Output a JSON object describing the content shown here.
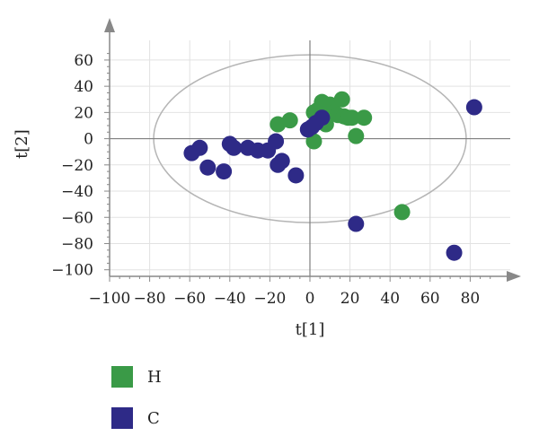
{
  "chart_data": {
    "type": "scatter",
    "title": "",
    "xlabel": "t[1]",
    "ylabel": "t[2]",
    "xlim": [
      -100,
      100
    ],
    "ylim": [
      -105,
      75
    ],
    "x_ticks": [
      -100,
      -80,
      -60,
      -40,
      -20,
      0,
      20,
      40,
      60,
      80
    ],
    "y_ticks": [
      -100,
      -80,
      -60,
      -40,
      -20,
      0,
      20,
      40,
      60
    ],
    "grid": true,
    "ellipse": {
      "center": [
        0,
        0
      ],
      "rx": 78,
      "ry": 64
    },
    "legend_position": "bottom-left",
    "series": [
      {
        "name": "H",
        "color": "#3a9a47",
        "points": [
          [
            -16,
            11
          ],
          [
            -10,
            14
          ],
          [
            2,
            -2
          ],
          [
            2,
            20
          ],
          [
            4,
            22
          ],
          [
            6,
            28
          ],
          [
            8,
            11
          ],
          [
            10,
            26
          ],
          [
            12,
            20
          ],
          [
            14,
            18
          ],
          [
            16,
            30
          ],
          [
            17,
            17
          ],
          [
            19,
            16
          ],
          [
            21,
            16
          ],
          [
            23,
            2
          ],
          [
            27,
            16
          ],
          [
            46,
            -56
          ]
        ]
      },
      {
        "name": "C",
        "color": "#2e2a87",
        "points": [
          [
            -59,
            -11
          ],
          [
            -55,
            -7
          ],
          [
            -51,
            -22
          ],
          [
            -43,
            -25
          ],
          [
            -40,
            -4
          ],
          [
            -38,
            -7
          ],
          [
            -31,
            -7
          ],
          [
            -26,
            -9
          ],
          [
            -21,
            -9
          ],
          [
            -17,
            -2
          ],
          [
            -16,
            -20
          ],
          [
            -14,
            -17
          ],
          [
            -7,
            -28
          ],
          [
            -1,
            7
          ],
          [
            1,
            9
          ],
          [
            3,
            12
          ],
          [
            6,
            16
          ],
          [
            23,
            -65
          ],
          [
            72,
            -87
          ],
          [
            82,
            24
          ]
        ]
      }
    ]
  },
  "legend": {
    "items": [
      {
        "label": "H",
        "color": "#3a9a47"
      },
      {
        "label": "C",
        "color": "#2e2a87"
      }
    ]
  }
}
